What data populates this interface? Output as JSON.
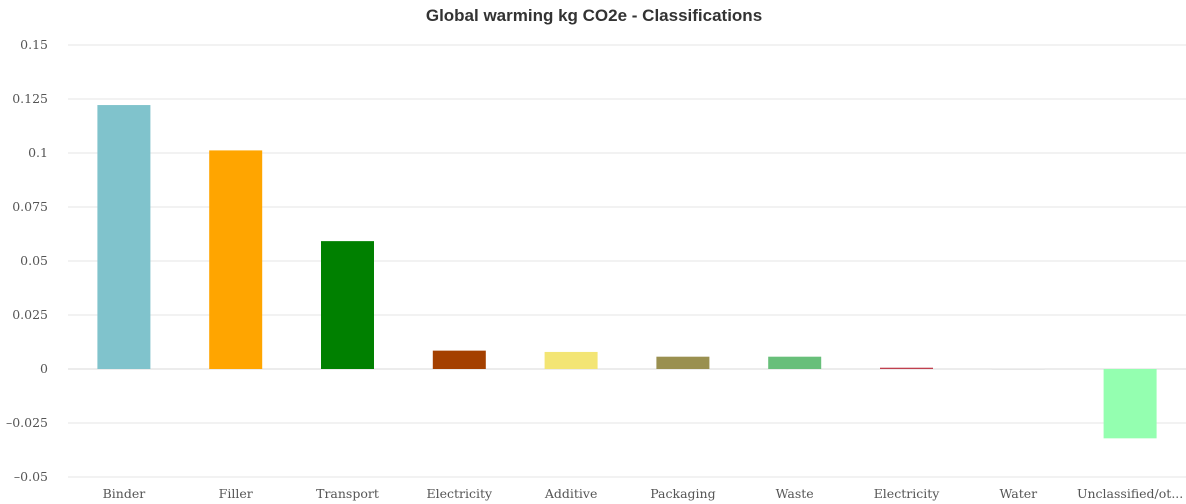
{
  "chart_data": {
    "type": "bar",
    "title": "Global warming kg CO2e - Classifications",
    "xlabel": "",
    "ylabel": "",
    "ylim": [
      -0.05,
      0.15
    ],
    "yticks": [
      -0.05,
      -0.025,
      0,
      0.025,
      0.05,
      0.075,
      0.1,
      0.125,
      0.15
    ],
    "ytick_labels": [
      "–0.05",
      "–0.025",
      "0",
      "0.025",
      "0.05",
      "0.075",
      "0.1",
      "0.125",
      "0.15"
    ],
    "grid": true,
    "legend": "none",
    "categories": [
      "Binder",
      "Filler",
      "Transport",
      "Electricity",
      "Additive",
      "Packaging",
      "Waste",
      "Electricity",
      "Water",
      "Unclassified/ot..."
    ],
    "values": [
      0.1222,
      0.1012,
      0.0592,
      0.0085,
      0.0079,
      0.0057,
      0.0057,
      0.0006,
      0.0001,
      -0.0321
    ],
    "colors": [
      "#80c3cc",
      "#ffa500",
      "#008000",
      "#a44000",
      "#f3e574",
      "#9a9050",
      "#68bf7a",
      "#c0404e",
      "#e0e0e0",
      "#94ffb0"
    ]
  }
}
